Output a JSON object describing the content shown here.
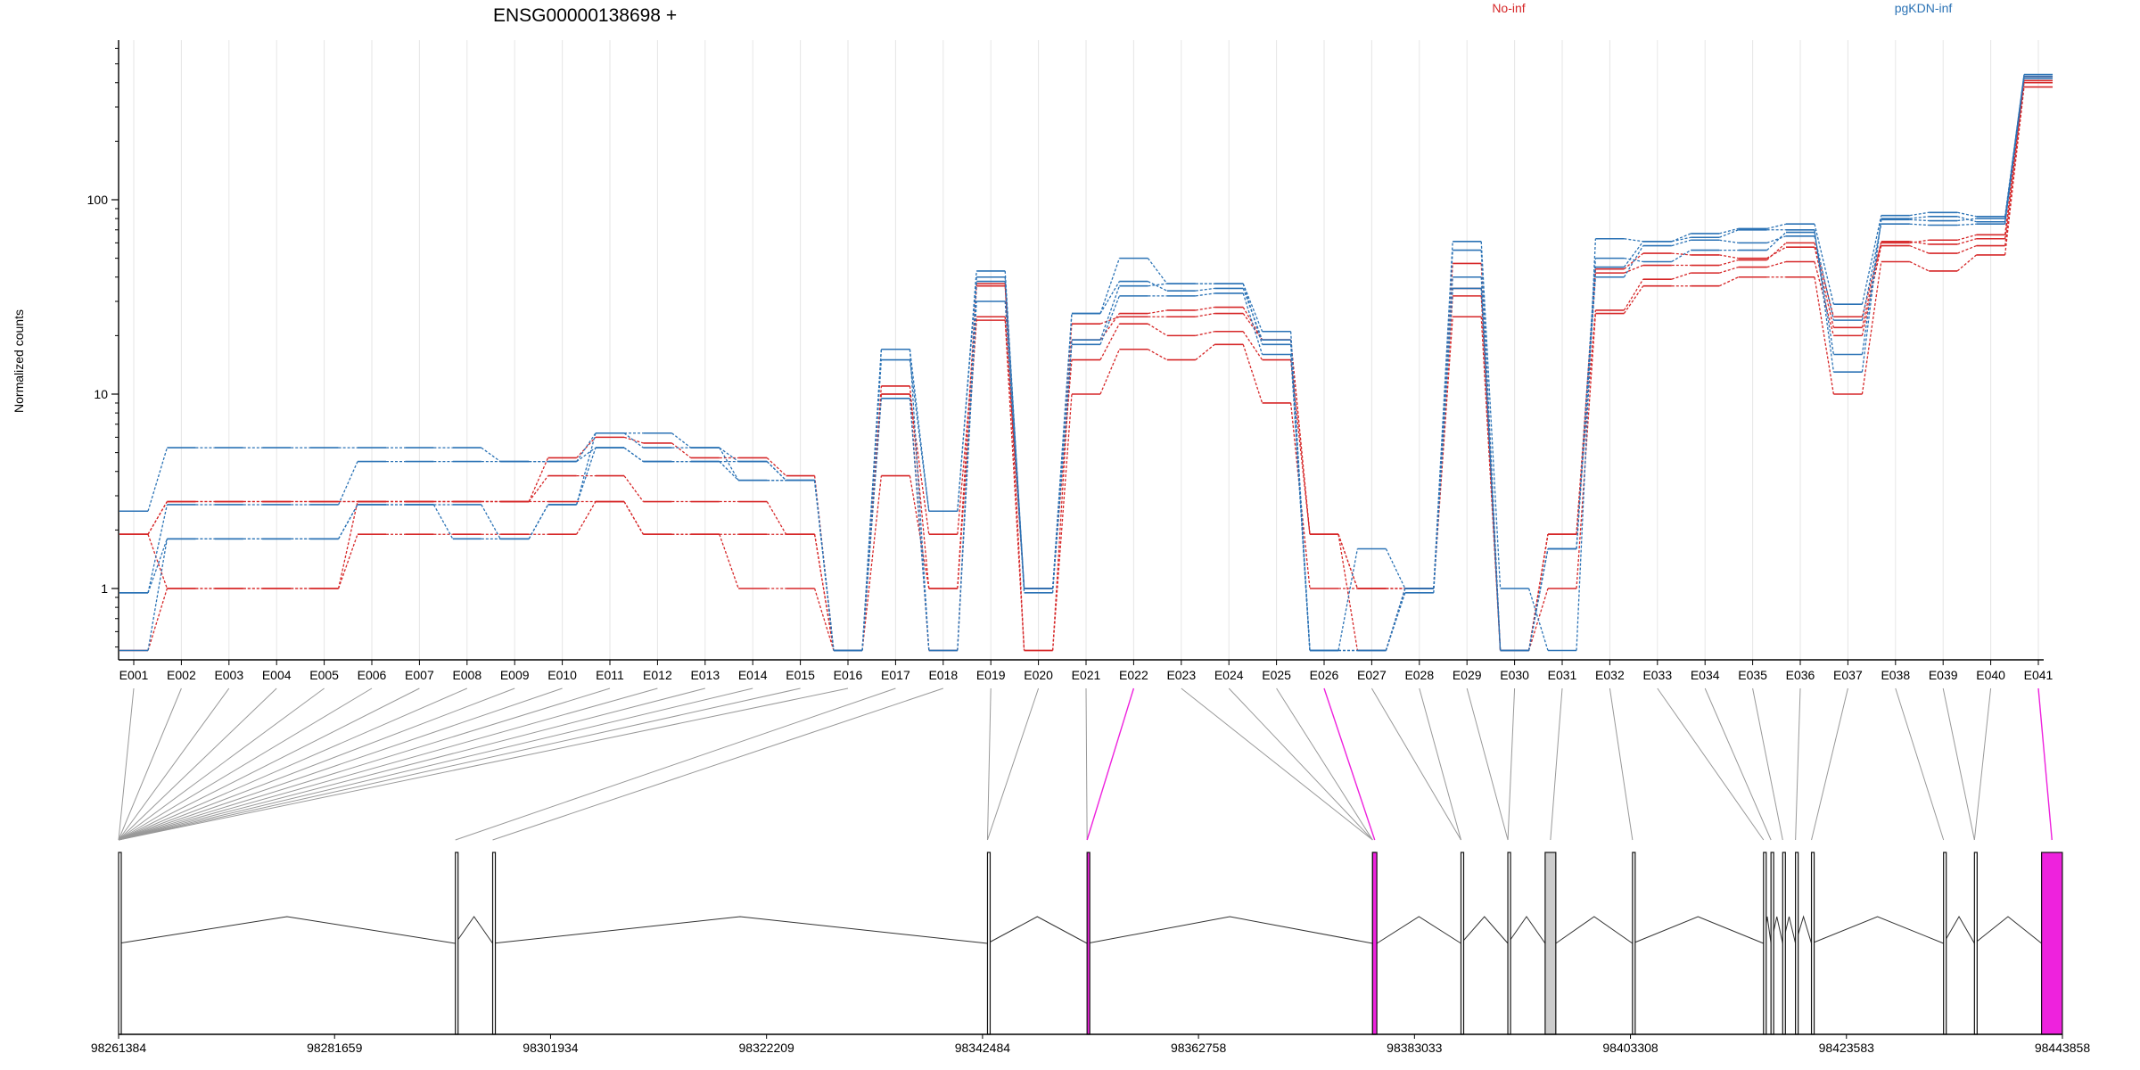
{
  "chart_data": {
    "type": "line",
    "title": "ENSG00000138698 +",
    "ylabel": "Normalized counts",
    "yscale": "log",
    "ylim": [
      0.45,
      650
    ],
    "yticks": [
      1,
      10,
      100
    ],
    "ytick_labels": [
      "1",
      "10",
      "100"
    ],
    "grid": "vertical lines at exon centers",
    "legend": [
      {
        "name": "No-inf",
        "color": "#d62728"
      },
      {
        "name": "pgKDN-inf",
        "color": "#2a72b5"
      }
    ],
    "zero_floor_value": 0.48,
    "categories": [
      "E001",
      "E002",
      "E003",
      "E004",
      "E005",
      "E006",
      "E007",
      "E008",
      "E009",
      "E010",
      "E011",
      "E012",
      "E013",
      "E014",
      "E015",
      "E016",
      "E017",
      "E018",
      "E019",
      "E020",
      "E021",
      "E022",
      "E023",
      "E024",
      "E025",
      "E026",
      "E027",
      "E028",
      "E029",
      "E030",
      "E031",
      "E032",
      "E033",
      "E034",
      "E035",
      "E036",
      "E037",
      "E038",
      "E039",
      "E040",
      "E041"
    ],
    "series": [
      {
        "group": "No-inf",
        "values": [
          0.48,
          1,
          1,
          1,
          1,
          1.9,
          1.9,
          1.9,
          1.9,
          1.9,
          2.8,
          1.9,
          1.9,
          1,
          1,
          0.48,
          3.8,
          1,
          24,
          0.48,
          10,
          17,
          15,
          18,
          9,
          1,
          1,
          1,
          25,
          0.48,
          1,
          26,
          36,
          36,
          40,
          40,
          10,
          48,
          43,
          52,
          380
        ]
      },
      {
        "group": "No-inf",
        "values": [
          1.9,
          2.8,
          2.8,
          2.8,
          2.8,
          2.8,
          2.8,
          2.8,
          2.8,
          3.8,
          3.8,
          2.8,
          2.8,
          2.8,
          1.9,
          0.48,
          10,
          1.9,
          25,
          1,
          15,
          23,
          20,
          21,
          15,
          1.9,
          1,
          1,
          32,
          0.48,
          1.9,
          27,
          39,
          42,
          45,
          48,
          20,
          58,
          53,
          58,
          400
        ]
      },
      {
        "group": "No-inf",
        "values": [
          1.9,
          1,
          1,
          1,
          1,
          2.8,
          2.8,
          2.8,
          2.8,
          2.8,
          2.8,
          1.9,
          1.9,
          1.9,
          1.9,
          0.48,
          11,
          1,
          37,
          0.48,
          19,
          26,
          27,
          28,
          19,
          1.9,
          0.48,
          1,
          47,
          0.48,
          1.9,
          44,
          53,
          52,
          50,
          57,
          22,
          61,
          59,
          63,
          410
        ]
      },
      {
        "group": "No-inf",
        "values": [
          1.9,
          2.8,
          2.8,
          2.8,
          2.8,
          2.8,
          2.8,
          2.8,
          2.8,
          4.7,
          6,
          5.6,
          4.7,
          4.7,
          3.8,
          0.48,
          10,
          0.48,
          36,
          1,
          23,
          25,
          25,
          26,
          19,
          1.9,
          1,
          1,
          35,
          0.48,
          1.9,
          42,
          46,
          46,
          49,
          60,
          25,
          60,
          62,
          66,
          430
        ]
      },
      {
        "group": "pgKDN-inf",
        "values": [
          2.5,
          5.3,
          5.3,
          5.3,
          5.3,
          5.3,
          5.3,
          5.3,
          4.5,
          4.5,
          6.3,
          6.3,
          5.3,
          4.5,
          3.6,
          0.48,
          17,
          2.5,
          43,
          1,
          26,
          50,
          37,
          37,
          21,
          0.48,
          1.6,
          1,
          61,
          1,
          0.48,
          63,
          61,
          67,
          71,
          75,
          29,
          83,
          86,
          82,
          440
        ]
      },
      {
        "group": "pgKDN-inf",
        "values": [
          0.48,
          1.8,
          1.8,
          1.8,
          1.8,
          2.7,
          2.7,
          1.8,
          1.8,
          2.7,
          5.3,
          4.5,
          4.5,
          4.5,
          3.6,
          0.48,
          9.5,
          0.48,
          30,
          1,
          18,
          32,
          32,
          33,
          16,
          0.48,
          0.48,
          1,
          35,
          0.48,
          1.6,
          40,
          58,
          62,
          60,
          65,
          24,
          75,
          74,
          75,
          420
        ]
      },
      {
        "group": "pgKDN-inf",
        "values": [
          0.95,
          2.7,
          2.7,
          2.7,
          2.7,
          4.5,
          4.5,
          4.5,
          4.5,
          4.5,
          5.3,
          4.5,
          4.5,
          3.6,
          3.6,
          0.48,
          15,
          2.5,
          40,
          1,
          26,
          38,
          34,
          35,
          19,
          0.48,
          0.48,
          1,
          55,
          0.48,
          1.6,
          50,
          48,
          55,
          55,
          68,
          16,
          79,
          78,
          80,
          440
        ]
      },
      {
        "group": "pgKDN-inf",
        "values": [
          0.95,
          1.8,
          1.8,
          1.8,
          1.8,
          2.7,
          2.7,
          2.7,
          1.8,
          2.7,
          6.3,
          5.3,
          5.3,
          3.6,
          3.6,
          0.48,
          17,
          0.48,
          38,
          0.95,
          19,
          36,
          37,
          37,
          18,
          0.48,
          0.48,
          0.95,
          40,
          0.48,
          1.6,
          45,
          61,
          64,
          70,
          70,
          13,
          80,
          82,
          77,
          430
        ]
      }
    ],
    "gene_model": {
      "coord_ticks": [
        98261384,
        98281659,
        98301934,
        98322209,
        98342484,
        98362758,
        98383033,
        98403308,
        98423583,
        98443858
      ],
      "xlim": [
        98261384,
        98443858
      ],
      "exons": [
        {
          "id": "E001",
          "start": 98261384,
          "end": 98261384
        },
        {
          "id": "E002",
          "start": 98261384,
          "end": 98261384
        },
        {
          "id": "E003",
          "start": 98261384,
          "end": 98261384
        },
        {
          "id": "E004",
          "start": 98261384,
          "end": 98261384
        },
        {
          "id": "E005",
          "start": 98261384,
          "end": 98261384
        },
        {
          "id": "E006",
          "start": 98261384,
          "end": 98261384
        },
        {
          "id": "E007",
          "start": 98261384,
          "end": 98261384
        },
        {
          "id": "E008",
          "start": 98261384,
          "end": 98261384
        },
        {
          "id": "E009",
          "start": 98261384,
          "end": 98261384
        },
        {
          "id": "E010",
          "start": 98261384,
          "end": 98261384
        },
        {
          "id": "E011",
          "start": 98261384,
          "end": 98261384
        },
        {
          "id": "E012",
          "start": 98261384,
          "end": 98261384
        },
        {
          "id": "E013",
          "start": 98261384,
          "end": 98261384
        },
        {
          "id": "E014",
          "start": 98261384,
          "end": 98261384
        },
        {
          "id": "E015",
          "start": 98261384,
          "end": 98261384
        },
        {
          "id": "E016",
          "start": 98261384,
          "end": 98261384
        },
        {
          "id": "E017",
          "start": 98293000,
          "end": 98293000
        },
        {
          "id": "E018",
          "start": 98296500,
          "end": 98296500
        },
        {
          "id": "E019",
          "start": 98342950,
          "end": 98342950
        },
        {
          "id": "E020",
          "start": 98342950,
          "end": 98342950
        },
        {
          "id": "E021",
          "start": 98352300,
          "end": 98352300
        },
        {
          "id": "E022",
          "start": 98352300,
          "end": 98352300
        },
        {
          "id": "E023",
          "start": 98379100,
          "end": 98379100
        },
        {
          "id": "E024",
          "start": 98379100,
          "end": 98379100
        },
        {
          "id": "E025",
          "start": 98379100,
          "end": 98379100
        },
        {
          "id": "E026",
          "start": 98379100,
          "end": 98379500
        },
        {
          "id": "E027",
          "start": 98387400,
          "end": 98387400
        },
        {
          "id": "E028",
          "start": 98387400,
          "end": 98387400
        },
        {
          "id": "E029",
          "start": 98391800,
          "end": 98391800
        },
        {
          "id": "E030",
          "start": 98391800,
          "end": 98391800
        },
        {
          "id": "E031",
          "start": 98395300,
          "end": 98396300
        },
        {
          "id": "E032",
          "start": 98403500,
          "end": 98403500
        },
        {
          "id": "E033",
          "start": 98415800,
          "end": 98415800
        },
        {
          "id": "E034",
          "start": 98416500,
          "end": 98416500
        },
        {
          "id": "E035",
          "start": 98417600,
          "end": 98417600
        },
        {
          "id": "E036",
          "start": 98418800,
          "end": 98418800
        },
        {
          "id": "E037",
          "start": 98420300,
          "end": 98420300
        },
        {
          "id": "E038",
          "start": 98432700,
          "end": 98432700
        },
        {
          "id": "E039",
          "start": 98435600,
          "end": 98435600
        },
        {
          "id": "E040",
          "start": 98435600,
          "end": 98435600
        },
        {
          "id": "E041",
          "start": 98441900,
          "end": 98443850
        }
      ],
      "highlighted": [
        "E022",
        "E026",
        "E041"
      ],
      "highlight_color": "#ee22dd",
      "shaded": [
        "E031"
      ]
    }
  }
}
